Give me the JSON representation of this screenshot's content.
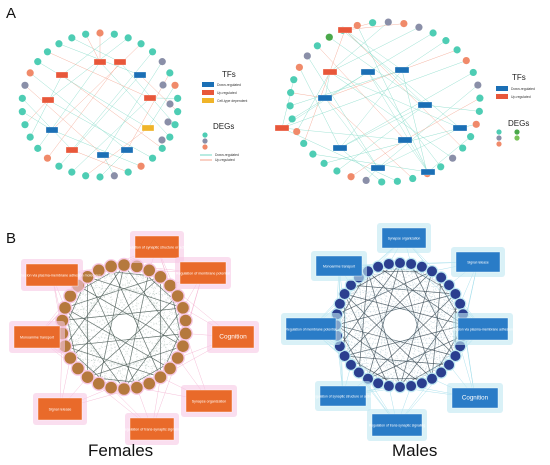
{
  "panels": {
    "a": {
      "letter": "A"
    },
    "b": {
      "letter": "B"
    }
  },
  "sex_labels": {
    "females": "Females",
    "males": "Males"
  },
  "legend_a_female": {
    "tfs_title": "TFs",
    "tf_items": [
      "Down-regulated",
      "Up-regulated",
      "Cell-type dependent"
    ],
    "degs_title": "DEGs",
    "edge_items": [
      "Down-regulated",
      "Up-regulated"
    ]
  },
  "legend_a_male": {
    "tfs_title": "TFs",
    "tf_items": [
      "Down-regulated",
      "Up-regulated"
    ],
    "degs_title": "DEGs"
  },
  "panel_b_female_terms": [
    "Regulation of synaptic structure or activity",
    "Regulation of membrane potential",
    "Cognition",
    "Synapse organization",
    "Regulation of trans-synaptic signaling",
    "Signal release",
    "Monoamine transport",
    "Cell-cell adhesion via plasma-membrane adhesion molecules"
  ],
  "panel_b_male_terms": [
    "Synapse organization",
    "Signal release",
    "Cell-cell adhesion via plasma-membrane adhesion molecules",
    "Cognition",
    "Regulation of trans-synaptic signaling",
    "Regulation of synaptic structure or activity",
    "Regulation of membrane potential",
    "Monoamine transport"
  ],
  "colors": {
    "tf_down": "#1b6fb5",
    "tf_up": "#e8573a",
    "tf_dependent": "#f0b429",
    "deg_teal": "#4ecdb4",
    "deg_gray": "#8a8fa8",
    "deg_salmon": "#f08a6a",
    "deg_green": "#4aa84a",
    "female_box": "#e96a2a",
    "female_glow": "#f7c8e4",
    "female_node": "#b5793d",
    "male_box": "#2a7cc7",
    "male_glow": "#bfe8f2",
    "male_node": "#2b3f8f"
  }
}
